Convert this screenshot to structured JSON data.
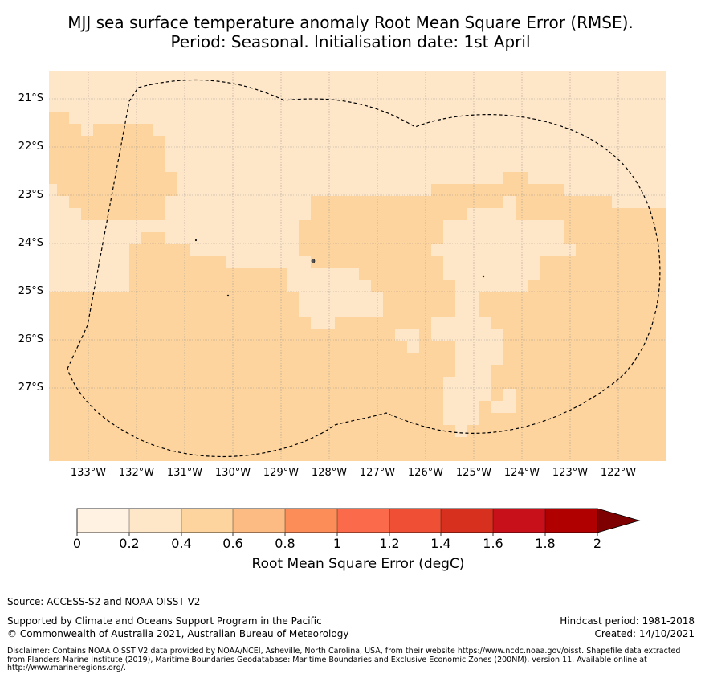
{
  "title": {
    "line1": "MJJ sea surface temperature anomaly Root Mean Square Error (RMSE).",
    "line2": "Period: Seasonal. Initialisation date: 1st April"
  },
  "map": {
    "lat_labels": [
      "21°S",
      "22°S",
      "23°S",
      "24°S",
      "25°S",
      "26°S",
      "27°S"
    ],
    "lon_labels": [
      "133°W",
      "132°W",
      "131°W",
      "130°W",
      "129°W",
      "128°W",
      "127°W",
      "126°W",
      "125°W",
      "124°W",
      "123°W",
      "122°W"
    ],
    "islands": [
      "Pitcairn",
      "Henderson",
      "Oeno",
      "Ducie"
    ],
    "boundary": "Exclusive Economic Zone (dashed)",
    "dominant_class_colors": {
      "0.2-0.4": "#fee6c8",
      "0.4-0.6": "#fdd49e"
    }
  },
  "colorbar": {
    "ticks": [
      "0",
      "0.2",
      "0.4",
      "0.6",
      "0.8",
      "1",
      "1.2",
      "1.4",
      "1.6",
      "1.8",
      "2"
    ],
    "colors": [
      "#fff2e2",
      "#fee6c8",
      "#fdd49e",
      "#fdbb84",
      "#fc8d59",
      "#fb6a4a",
      "#ef5035",
      "#d7301f",
      "#c8101a",
      "#b00000"
    ],
    "extend_color": "#7f0000",
    "label": "Root Mean Square Error (degC)"
  },
  "footer": {
    "source": "Source: ACCESS-S2 and NOAA OISST V2",
    "supported": "Supported by Climate and Oceans Support Program in the Pacific",
    "copyright": "© Commonwealth of Australia 2021, Australian Bureau of Meteorology",
    "hindcast": "Hindcast period: 1981-2018",
    "created": "Created: 14/10/2021",
    "disclaimer": "Disclaimer: Contains NOAA OISST V2 data provided by NOAA/NCEI, Asheville, North Carolina, USA, from their website https://www.ncdc.noaa.gov/oisst. Shapefile data extracted from Flanders Marine Institute (2019), Maritime Boundaries Geodatabase: Maritime Boundaries and Exclusive Economic Zones (200NM), version 11. Available online at http://www.marineregions.org/."
  }
}
